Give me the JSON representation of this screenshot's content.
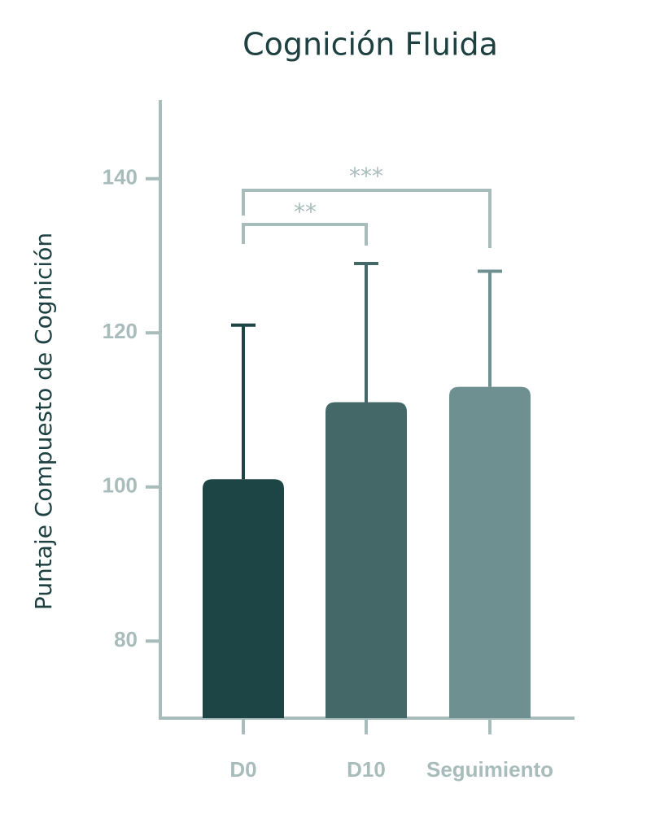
{
  "chart_data": {
    "type": "bar",
    "title": "Cognición Fluida",
    "y_label": "Puntaje Compuesto de Cognición",
    "categories": [
      "D0",
      "D10",
      "Seguimiento"
    ],
    "series": [
      {
        "name": "Puntaje",
        "colors": [
          "#1e4545",
          "#446868",
          "#6f9090"
        ],
        "values": [
          101,
          111,
          113
        ],
        "errors": [
          20,
          18,
          15
        ]
      }
    ],
    "ylim": [
      70,
      150
    ],
    "yticks": [
      80,
      100,
      120,
      140
    ],
    "grid": false,
    "annotations": [
      "**",
      "***"
    ]
  }
}
